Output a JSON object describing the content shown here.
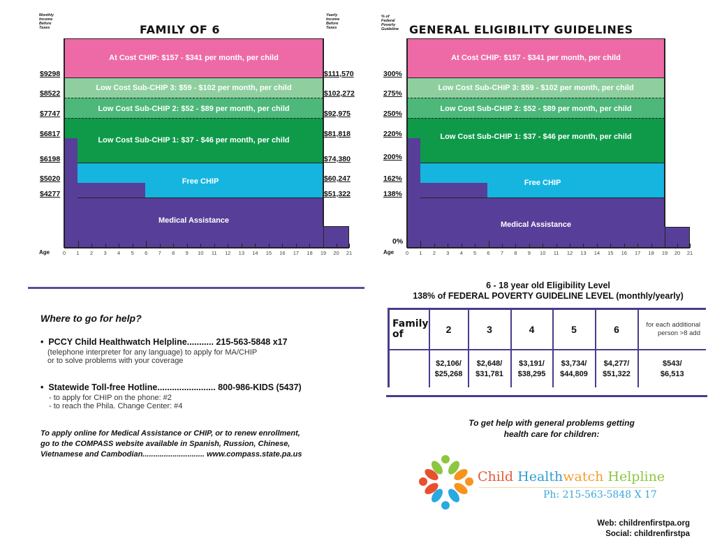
{
  "chart_data": [
    {
      "type": "area",
      "title": "FAMILY OF 6",
      "xlabel": "Age",
      "ylabel_left": "Monthly Income Before Taxes",
      "ylabel_right": "Yearly Income Before Taxes",
      "x_ticks": [
        0,
        1,
        2,
        3,
        4,
        5,
        6,
        7,
        8,
        9,
        10,
        11,
        12,
        13,
        14,
        15,
        16,
        17,
        18,
        19,
        20,
        21
      ],
      "left_ticks": [
        "$9298",
        "$8522",
        "$7747",
        "$6817",
        "$6198",
        "$5020",
        "$4277"
      ],
      "right_ticks": [
        "$111,570",
        "$102,272",
        "$92,975",
        "$81,818",
        "$74,380",
        "$60,247",
        "$51,322"
      ],
      "bands": [
        {
          "name": "At Cost CHIP",
          "label": "At Cost CHIP: $157 - $341 per month, per child",
          "color": "#ee6aa7",
          "from": "$9298",
          "to": "top",
          "ages": [
            0,
            19
          ]
        },
        {
          "name": "Low Cost Sub-CHIP 3",
          "label": "Low Cost Sub-CHIP 3: $59 - $102 per month, per child",
          "color": "#8fcf9f",
          "from": "$8522",
          "to": "$9298",
          "ages": [
            0,
            19
          ]
        },
        {
          "name": "Low Cost Sub-CHIP 2",
          "label": "Low Cost Sub-CHIP 2: $52 - $89 per month, per child",
          "color": "#4db87a",
          "from": "$7747",
          "to": "$8522",
          "ages": [
            0,
            19
          ]
        },
        {
          "name": "Low Cost Sub-CHIP 1",
          "label": "Low Cost Sub-CHIP 1: $37 - $46 per month, per child",
          "color": "#0f9a4a",
          "from": "$6198",
          "to": "$7747",
          "ages": [
            0,
            19
          ]
        },
        {
          "name": "Free CHIP",
          "label": "Free CHIP",
          "color": "#16b5e0",
          "from": "$4277 (ages 6-19) / $5020 (ages 1-6)",
          "to": "$6198",
          "ages": [
            1,
            19
          ]
        },
        {
          "name": "Medical Assistance",
          "label": "Medical Assistance",
          "color": "#573f99",
          "steps": [
            {
              "ages": [
                0,
                1
              ],
              "upper": "$6817"
            },
            {
              "ages": [
                1,
                6
              ],
              "upper": "$5020"
            },
            {
              "ages": [
                6,
                19
              ],
              "upper": "$4277"
            },
            {
              "ages": [
                19,
                21
              ],
              "upper": "low"
            }
          ]
        }
      ]
    },
    {
      "type": "area",
      "title": "GENERAL ELIGIBILITY GUIDELINES",
      "xlabel": "Age",
      "ylabel": "% of Federal Poverty Guideline",
      "x_ticks": [
        0,
        1,
        2,
        3,
        4,
        5,
        6,
        7,
        8,
        9,
        10,
        11,
        12,
        13,
        14,
        15,
        16,
        17,
        18,
        19,
        20,
        21
      ],
      "left_ticks": [
        "300%",
        "275%",
        "250%",
        "220%",
        "200%",
        "162%",
        "138%",
        "0%"
      ],
      "bands": [
        {
          "name": "At Cost CHIP",
          "label": "At Cost CHIP: $157 - $341 per month, per child",
          "from": 300
        },
        {
          "name": "Low Cost Sub-CHIP 3",
          "label": "Low Cost Sub-CHIP 3: $59 - $102 per month, per child",
          "from": 275,
          "to": 300
        },
        {
          "name": "Low Cost Sub-CHIP 2",
          "label": "Low Cost Sub-CHIP 2: $52 - $89 per month, per child",
          "from": 250,
          "to": 275
        },
        {
          "name": "Low Cost Sub-CHIP 1",
          "label": "Low Cost Sub-CHIP 1: $37 - $46 per month, per child",
          "from": 200,
          "to": 250
        },
        {
          "name": "Free CHIP",
          "label": "Free CHIP",
          "from": "138 (ages 6-19) / 162 (ages 1-6)",
          "to": 200
        },
        {
          "name": "Medical Assistance",
          "label": "Medical Assistance",
          "steps": [
            {
              "ages": [
                0,
                1
              ],
              "upper": 220
            },
            {
              "ages": [
                1,
                6
              ],
              "upper": 162
            },
            {
              "ages": [
                6,
                19
              ],
              "upper": 138
            }
          ]
        }
      ]
    },
    {
      "type": "table",
      "title": "6 - 18 year old Eligibility Level",
      "subtitle": "138% of FEDERAL POVERTY GUIDELINE LEVEL (monthly/yearly)",
      "columns": [
        "Family of",
        "2",
        "3",
        "4",
        "5",
        "6",
        "for each additional person >8 add"
      ],
      "rows": [
        [
          "",
          "$2,106/ $25,268",
          "$2,648/ $31,781",
          "$3,191/ $38,295",
          "$3,734/ $44,809",
          "$4,277/ $51,322",
          "$543/ $6,513"
        ]
      ]
    }
  ],
  "left_chart": {
    "title": "FAMILY OF 6",
    "axis_left_caption": [
      "Monthly",
      "Income",
      "Before",
      "Taxes"
    ],
    "axis_right_caption": [
      "Yearly",
      "Income",
      "Before",
      "Taxes"
    ],
    "band_labels": {
      "at_cost": "At Cost CHIP: $157 - $341 per month, per child",
      "sub3": "Low Cost Sub-CHIP 3: $59 - $102 per month, per child",
      "sub2": "Low Cost Sub-CHIP 2: $52 - $89 per month, per child",
      "sub1": "Low Cost Sub-CHIP 1: $37 - $46 per month, per child",
      "free": "Free CHIP",
      "ma": "Medical Assistance"
    },
    "left_ticks": [
      "$9298",
      "$8522",
      "$7747",
      "$6817",
      "$6198",
      "$5020",
      "$4277"
    ],
    "right_ticks": [
      "$111,570",
      "$102,272",
      "$92,975",
      "$81,818",
      "$74,380",
      "$60,247",
      "$51,322"
    ],
    "age_label": "Age",
    "ages": [
      "0",
      "1",
      "2",
      "3",
      "4",
      "5",
      "6",
      "7",
      "8",
      "9",
      "10",
      "11",
      "12",
      "13",
      "14",
      "15",
      "16",
      "17",
      "18",
      "19",
      "20",
      "21"
    ]
  },
  "right_chart": {
    "title": "GENERAL ELIGIBILITY GUIDELINES",
    "axis_caption": [
      "% of",
      "Federal",
      "Poverty",
      "Guideline"
    ],
    "band_labels": {
      "at_cost": "At Cost CHIP: $157 - $341 per month, per child",
      "sub3": "Low Cost Sub-CHIP 3: $59 - $102 per month, per child",
      "sub2": "Low Cost Sub-CHIP 2: $52 - $89 per month, per child",
      "sub1": "Low Cost Sub-CHIP 1: $37 - $46 per month, per child",
      "free": "Free CHIP",
      "ma": "Medical Assistance"
    },
    "left_ticks": [
      "300%",
      "275%",
      "250%",
      "220%",
      "200%",
      "162%",
      "138%",
      "0%"
    ],
    "age_label": "Age",
    "ages": [
      "0",
      "1",
      "2",
      "3",
      "4",
      "5",
      "6",
      "7",
      "8",
      "9",
      "10",
      "11",
      "12",
      "13",
      "14",
      "15",
      "16",
      "17",
      "18",
      "19",
      "20",
      "21"
    ]
  },
  "eligibility_table": {
    "title": "6 - 18 year old Eligibility Level",
    "subtitle": "138% of FEDERAL POVERTY GUIDELINE LEVEL (monthly/yearly)",
    "header": {
      "family_of": "Family of",
      "sizes": [
        "2",
        "3",
        "4",
        "5",
        "6"
      ],
      "additional": "for each additional person >8 add"
    },
    "values": [
      {
        "monthly": "$2,106/",
        "yearly": "$25,268"
      },
      {
        "monthly": "$2,648/",
        "yearly": "$31,781"
      },
      {
        "monthly": "$3,191/",
        "yearly": "$38,295"
      },
      {
        "monthly": "$3,734/",
        "yearly": "$44,809"
      },
      {
        "monthly": "$4,277/",
        "yearly": "$51,322"
      },
      {
        "monthly": "$543/",
        "yearly": "$6,513"
      }
    ]
  },
  "help": {
    "title": "Where to go for help?",
    "items": [
      {
        "line": "PCCY Child Healthwatch Helpline........... 215-563-5848 x17",
        "sub": [
          "(telephone interpreter for any language) to apply for MA/CHIP",
          "or to solve problems with your coverage"
        ]
      },
      {
        "line": "Statewide Toll-free Hotline........................ 800-986-KIDS (5437)",
        "sub": [
          "- to apply for CHIP on the phone: #2",
          "- to reach the Phila. Change Center: #4"
        ]
      }
    ],
    "compass": [
      "To apply online for Medical Assistance or CHIP, or to renew enrollment,",
      "go to the COMPASS website available in Spanish, Russion, Chinese,",
      "Vietnamese and Cambodian.............................  www.compass.state.pa.us"
    ]
  },
  "general_help": {
    "text": [
      "To get help with general problems getting",
      "health care for children:"
    ],
    "logo": {
      "word1": "Child ",
      "word2": "Health",
      "word3": "watch ",
      "word4": "Helpline",
      "phone": "Ph: 215-563-5848 X 17"
    },
    "web": "Web: childrenfirstpa.org",
    "social": "Social: childrenfirstpa"
  },
  "colors": {
    "at_cost": "#ee6aa7",
    "sub3": "#8fcf9f",
    "sub2": "#4db87a",
    "sub1": "#0f9a4a",
    "free": "#16b5e0",
    "ma": "#573f99",
    "rule": "#5b4b9b"
  }
}
